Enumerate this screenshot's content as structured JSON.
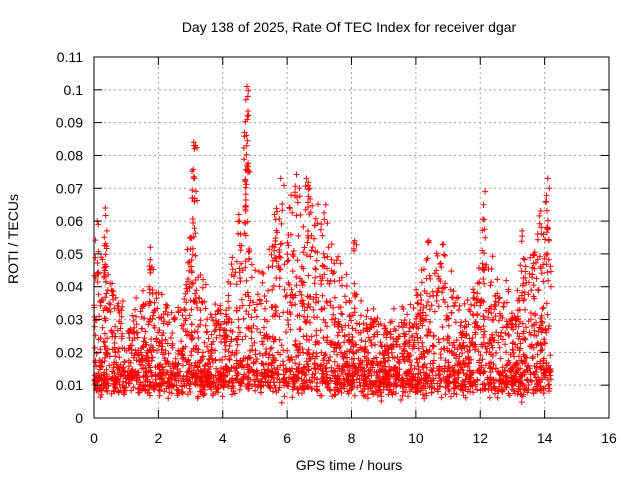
{
  "chart_data": {
    "type": "scatter",
    "title": "Day 138 of 2025, Rate Of TEC Index for receiver dgar",
    "xlabel": "GPS time / hours",
    "ylabel": "ROTI / TECUs",
    "xlim": [
      0,
      16
    ],
    "ylim": [
      0,
      0.11
    ],
    "xticks": [
      0,
      2,
      4,
      6,
      8,
      10,
      12,
      14,
      16
    ],
    "xtick_labels": [
      "0",
      "2",
      "4",
      "6",
      "8",
      "10",
      "12",
      "14",
      "16"
    ],
    "yticks": [
      0,
      0.01,
      0.02,
      0.03,
      0.04,
      0.05,
      0.06,
      0.07,
      0.08,
      0.09,
      0.1,
      0.11
    ],
    "ytick_labels": [
      "0",
      "0.01",
      "0.02",
      "0.03",
      "0.04",
      "0.05",
      "0.06",
      "0.07",
      "0.08",
      "0.09",
      "0.1",
      "0.11"
    ],
    "grid": true,
    "marker": "+",
    "series": [
      {
        "name": "ROTI",
        "color": "#ff0000",
        "x_range": [
          0,
          14.2
        ],
        "typical_range": [
          0.005,
          0.03
        ],
        "notable_points": [
          {
            "x": 0.1,
            "y": 0.06
          },
          {
            "x": 0.35,
            "y": 0.064
          },
          {
            "x": 0.4,
            "y": 0.057
          },
          {
            "x": 0.35,
            "y": 0.046
          },
          {
            "x": 1.75,
            "y": 0.052
          },
          {
            "x": 1.8,
            "y": 0.046
          },
          {
            "x": 3.1,
            "y": 0.084
          },
          {
            "x": 3.15,
            "y": 0.083
          },
          {
            "x": 3.1,
            "y": 0.073
          },
          {
            "x": 3.05,
            "y": 0.067
          },
          {
            "x": 4.75,
            "y": 0.101
          },
          {
            "x": 4.78,
            "y": 0.098
          },
          {
            "x": 4.72,
            "y": 0.097
          },
          {
            "x": 4.68,
            "y": 0.087
          },
          {
            "x": 4.75,
            "y": 0.077
          },
          {
            "x": 4.7,
            "y": 0.072
          },
          {
            "x": 4.5,
            "y": 0.062
          },
          {
            "x": 5.8,
            "y": 0.073
          },
          {
            "x": 6.6,
            "y": 0.073
          },
          {
            "x": 6.7,
            "y": 0.07
          },
          {
            "x": 7.2,
            "y": 0.065
          },
          {
            "x": 8.1,
            "y": 0.054
          },
          {
            "x": 10.4,
            "y": 0.054
          },
          {
            "x": 10.85,
            "y": 0.053
          },
          {
            "x": 12.15,
            "y": 0.069
          },
          {
            "x": 12.1,
            "y": 0.065
          },
          {
            "x": 13.3,
            "y": 0.057
          },
          {
            "x": 14.1,
            "y": 0.073
          },
          {
            "x": 14.05,
            "y": 0.066
          }
        ]
      }
    ]
  }
}
